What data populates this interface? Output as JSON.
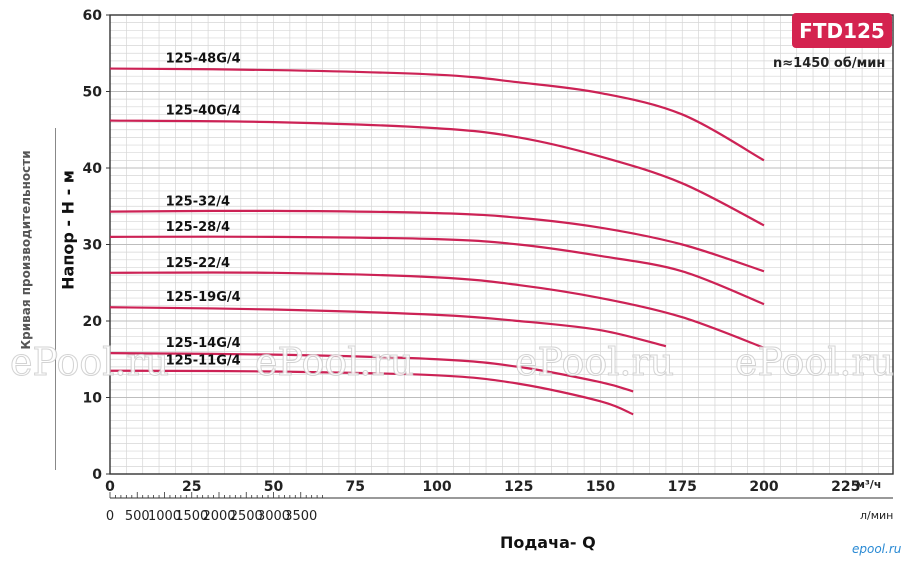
{
  "badge": "FTD125",
  "speed_text": "n≈1450 об/мин",
  "side_label": "Кривая производительности",
  "watermarks": [
    "ePool.ru",
    "ePool.ru",
    "ePool.ru",
    "ePool.ru"
  ],
  "corner_mark": "epool.ru",
  "units": {
    "m3h": "м³/ч",
    "lmin": "л/мин"
  },
  "chart_data": {
    "type": "line",
    "title": "",
    "ylabel": "Напор - Н - м",
    "xlabel": "Подача- Q",
    "ylim": [
      0,
      60
    ],
    "xlim": [
      0,
      230
    ],
    "y_ticks": [
      "0",
      "10",
      "20",
      "30",
      "40",
      "50",
      "60"
    ],
    "x_ticks_m3h": [
      "0",
      "25",
      "50",
      "75",
      "100",
      "125",
      "150",
      "175",
      "200",
      "225"
    ],
    "x_ticks_lmin": [
      "0",
      "500",
      "1000",
      "1500",
      "2000",
      "2500",
      "3000",
      "3500"
    ],
    "series": [
      {
        "name": "125-48G/4",
        "x": [
          0,
          50,
          100,
          125,
          150,
          175,
          200
        ],
        "y": [
          53,
          52.8,
          52.2,
          51.2,
          49.8,
          47,
          41
        ]
      },
      {
        "name": "125-40G/4",
        "x": [
          0,
          50,
          100,
          125,
          150,
          175,
          200
        ],
        "y": [
          46.2,
          46,
          45.2,
          44,
          41.5,
          38,
          32.5
        ]
      },
      {
        "name": "125-32/4",
        "x": [
          0,
          50,
          100,
          125,
          150,
          175,
          200
        ],
        "y": [
          34.3,
          34.4,
          34.1,
          33.5,
          32.2,
          30,
          26.5
        ]
      },
      {
        "name": "125-28/4",
        "x": [
          0,
          50,
          100,
          125,
          150,
          175,
          200
        ],
        "y": [
          31,
          31,
          30.7,
          30,
          28.5,
          26.5,
          22.2
        ]
      },
      {
        "name": "125-22/4",
        "x": [
          0,
          50,
          100,
          125,
          150,
          175,
          200
        ],
        "y": [
          26.3,
          26.3,
          25.7,
          24.7,
          23,
          20.5,
          16.5
        ]
      },
      {
        "name": "125-19G/4",
        "x": [
          0,
          50,
          100,
          125,
          150,
          170
        ],
        "y": [
          21.8,
          21.5,
          20.8,
          20,
          18.8,
          16.7
        ]
      },
      {
        "name": "125-14G/4",
        "x": [
          0,
          50,
          100,
          125,
          150,
          160
        ],
        "y": [
          15.8,
          15.6,
          15,
          14,
          12,
          10.8
        ]
      },
      {
        "name": "125-11G/4",
        "x": [
          0,
          50,
          100,
          125,
          150,
          160
        ],
        "y": [
          13.5,
          13.4,
          12.9,
          11.8,
          9.5,
          7.8
        ]
      }
    ]
  }
}
